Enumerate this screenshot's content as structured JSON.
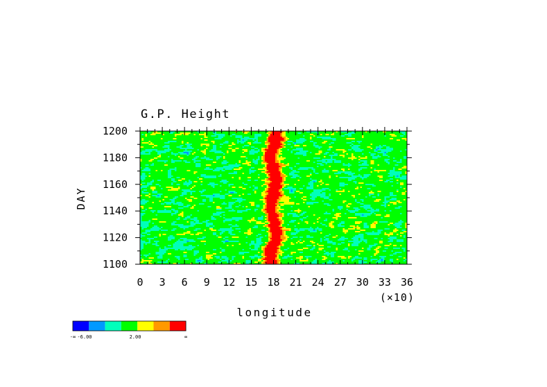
{
  "chart_data": {
    "type": "heatmap",
    "title": "G.P. Height",
    "xlabel": "longitude",
    "xlabel_multiplier": "(×10)",
    "ylabel": "DAY",
    "xlim": [
      0,
      36
    ],
    "ylim": [
      1100,
      1200
    ],
    "x_tick_labels": [
      "0",
      "3",
      "6",
      "9",
      "12",
      "15",
      "18",
      "21",
      "24",
      "27",
      "30",
      "33",
      "36"
    ],
    "y_tick_labels": [
      "1100",
      "1120",
      "1140",
      "1160",
      "1180",
      "1200"
    ],
    "colorbar": {
      "colors": [
        "#0000ff",
        "#0099ff",
        "#00ffbb",
        "#00ff00",
        "#ffff00",
        "#ff9900",
        "#ff0000"
      ],
      "labels": [
        "-∞",
        "-6.00",
        "2.00",
        "∞"
      ]
    },
    "features": [
      {
        "kind": "ridge",
        "center_x": 18,
        "value_class": 6,
        "day_range": [
          1100,
          1200
        ]
      }
    ]
  }
}
